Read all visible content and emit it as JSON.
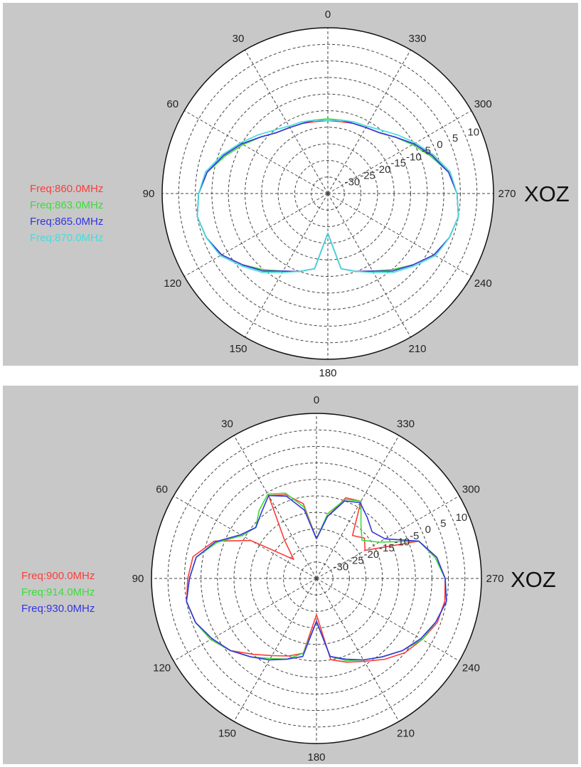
{
  "chart_data": [
    {
      "type": "polar",
      "title": "XOZ",
      "angular_ticks": [
        "0",
        "30",
        "60",
        "90",
        "120",
        "150",
        "180",
        "210",
        "240",
        "270",
        "300",
        "330"
      ],
      "angular_direction": "counterclockwise",
      "zero_location": "top",
      "radial_ticks": [
        "10",
        "5",
        "0",
        "-5",
        "-10",
        "-15",
        "-20",
        "-25",
        "-30"
      ],
      "rlim": [
        -35,
        15
      ],
      "grid": true,
      "legend_position": "left",
      "theta_step_deg": 10,
      "series": [
        {
          "name": "Freq:860.0MHz",
          "color": "#ff3b3b",
          "r": [
            -13,
            -13,
            -12.5,
            -12,
            -11,
            -8.5,
            -5,
            -1.5,
            2,
            4,
            5,
            4,
            2,
            -1.5,
            -5,
            -8,
            -10,
            -12,
            -23,
            -12,
            -10,
            -8,
            -5,
            -1.5,
            2,
            4,
            5,
            4,
            2,
            -1.5,
            -5,
            -8.5,
            -11,
            -12,
            -12.5,
            -13
          ]
        },
        {
          "name": "Freq:863.0MHz",
          "color": "#3bdc3b",
          "r": [
            -12.5,
            -12.5,
            -12.5,
            -12,
            -11,
            -8.5,
            -5.5,
            -2,
            2,
            4,
            5,
            4,
            2,
            -1.5,
            -5,
            -8,
            -10,
            -12,
            -23,
            -12,
            -10,
            -8,
            -5,
            -1.5,
            2,
            4,
            5,
            4,
            2,
            -2,
            -5.5,
            -8.5,
            -11,
            -12,
            -12.5,
            -12.5
          ]
        },
        {
          "name": "Freq:865.0MHz",
          "color": "#3434e0",
          "r": [
            -13,
            -12.5,
            -12.5,
            -12,
            -11,
            -8.5,
            -5,
            -1.5,
            2,
            4,
            5,
            4,
            2,
            -1.5,
            -4.5,
            -8,
            -10,
            -12,
            -23,
            -12,
            -10,
            -8,
            -4.5,
            -1.5,
            2,
            4,
            5,
            4,
            2,
            -1.5,
            -5,
            -8.5,
            -11,
            -12,
            -12.5,
            -12.5
          ]
        },
        {
          "name": "Freq:870.0MHz",
          "color": "#44dddd",
          "r": [
            -13,
            -12.5,
            -12,
            -11.5,
            -10,
            -7.5,
            -4.5,
            -1,
            2.5,
            4,
            5,
            4,
            2.5,
            -1,
            -4,
            -7.5,
            -10,
            -12,
            -23,
            -12,
            -10,
            -7.5,
            -4,
            -1,
            2.5,
            4,
            5,
            4,
            2.5,
            -1,
            -4.5,
            -7.5,
            -10,
            -11.5,
            -12,
            -12.5
          ]
        }
      ]
    },
    {
      "type": "polar",
      "title": "XOZ",
      "angular_ticks": [
        "0",
        "30",
        "60",
        "90",
        "120",
        "150",
        "180",
        "210",
        "240",
        "270",
        "300",
        "330"
      ],
      "angular_direction": "counterclockwise",
      "zero_location": "top",
      "radial_ticks": [
        "10",
        "5",
        "0",
        "-5",
        "-10",
        "-15",
        "-20",
        "-25",
        "-30"
      ],
      "rlim": [
        -35,
        15
      ],
      "grid": true,
      "legend_position": "left",
      "theta_step_deg": 10,
      "series": [
        {
          "name": "Freq:900.0MHz",
          "color": "#ff3b3b",
          "r": [
            -23,
            -12,
            -8,
            -6,
            -20,
            -26,
            -12,
            -2,
            3,
            4,
            5,
            4,
            2,
            -1,
            -5,
            -8,
            -10,
            -12,
            -24,
            -10,
            -8,
            -6,
            -3,
            0,
            2,
            4,
            4.5,
            4,
            2,
            -2,
            -18,
            -16,
            -18,
            -8,
            -9,
            -16
          ]
        },
        {
          "name": "Freq:914.0MHz",
          "color": "#3bdc3b",
          "r": [
            -23,
            -13,
            -7.5,
            -5.5,
            -8,
            -11,
            -9,
            -3,
            2,
            3.5,
            5,
            4,
            2,
            -1,
            -4,
            -7,
            -9,
            -12,
            -22,
            -11,
            -8.5,
            -6.5,
            -4,
            -1,
            2,
            3.5,
            5,
            4,
            1.5,
            -2,
            -13,
            -17,
            -14,
            -8,
            -9.5,
            -15
          ]
        },
        {
          "name": "Freq:930.0MHz",
          "color": "#3434e0",
          "r": [
            -23,
            -14,
            -8.5,
            -6,
            -9,
            -11,
            -8.5,
            -2.5,
            2,
            3.5,
            5,
            4,
            1.5,
            -1,
            -4,
            -6.5,
            -9,
            -11,
            -22,
            -11,
            -9,
            -6.5,
            -4,
            -1,
            1.5,
            3.5,
            5,
            4,
            2,
            -2,
            -11,
            -13,
            -11,
            -8.5,
            -10,
            -16
          ]
        }
      ]
    }
  ]
}
